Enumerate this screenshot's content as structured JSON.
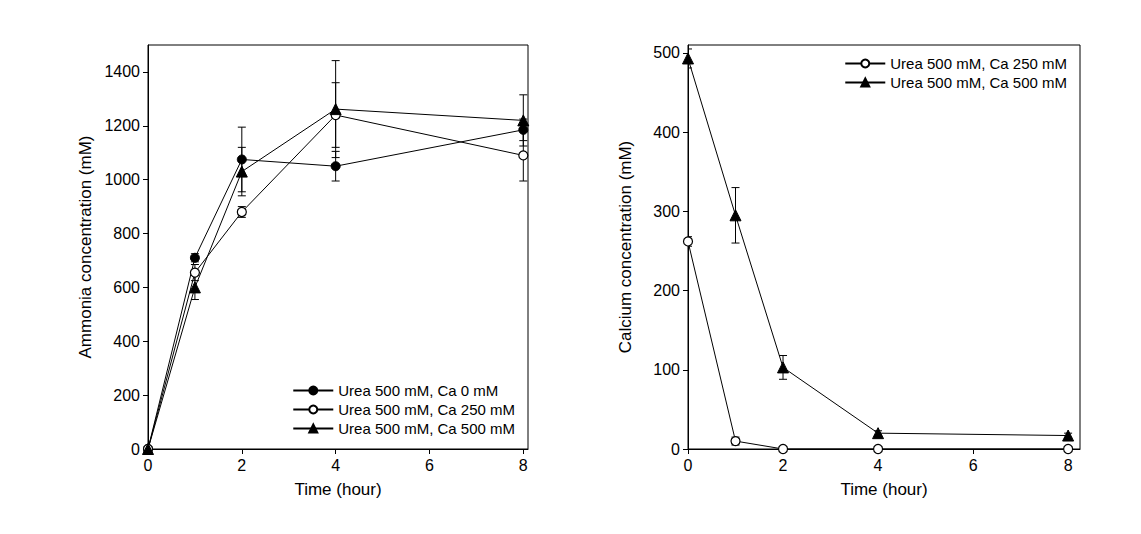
{
  "chart_data": [
    {
      "type": "line",
      "x_label": "Time (hour)",
      "y_label": "Ammonia concentration (mM)",
      "x": [
        0,
        1,
        2,
        4,
        8
      ],
      "xlim": [
        0,
        8.1
      ],
      "xticks": [
        0,
        2,
        4,
        6,
        8
      ],
      "ylim": [
        0,
        1500
      ],
      "yticks": [
        0,
        200,
        400,
        600,
        800,
        1000,
        1200,
        1400
      ],
      "grid": false,
      "legend": "lower right",
      "series": [
        {
          "name": "Urea 500 mM, Ca 0 mM",
          "color": "#000000",
          "marker": "circle",
          "values": [
            0,
            710,
            1075,
            1050,
            1185
          ],
          "errors": [
            0,
            15,
            120,
            55,
            40
          ]
        },
        {
          "name": "Urea 500 mM, Ca 250 mM",
          "color": "#000000",
          "marker": "circle_open",
          "values": [
            0,
            655,
            880,
            1240,
            1090
          ],
          "errors": [
            0,
            30,
            20,
            120,
            95
          ]
        },
        {
          "name": "Urea 500 mM, Ca 500 mM",
          "color": "#000000",
          "marker": "triangle",
          "values": [
            0,
            600,
            1030,
            1262,
            1220
          ],
          "errors": [
            0,
            45,
            90,
            180,
            95
          ]
        }
      ]
    },
    {
      "type": "line",
      "x_label": "Time (hour)",
      "y_label": "Calcium concentration (mM)",
      "x": [
        0,
        1,
        2,
        4,
        8
      ],
      "xlim": [
        0,
        8.25
      ],
      "xticks": [
        0,
        2,
        4,
        6,
        8
      ],
      "ylim": [
        0,
        510
      ],
      "yticks": [
        0,
        100,
        200,
        300,
        400,
        500
      ],
      "grid": false,
      "legend": "upper right",
      "series": [
        {
          "name": "Urea 500 mM, Ca 250 mM",
          "color": "#000000",
          "marker": "circle_open",
          "values": [
            262,
            10,
            0,
            0,
            0
          ],
          "errors": [
            6,
            5,
            0,
            0,
            0
          ]
        },
        {
          "name": "Urea 500 mM, Ca 500 mM",
          "color": "#000000",
          "marker": "triangle",
          "values": [
            493,
            295,
            103,
            20,
            17
          ],
          "errors": [
            12,
            35,
            15,
            3,
            3
          ]
        }
      ]
    }
  ]
}
